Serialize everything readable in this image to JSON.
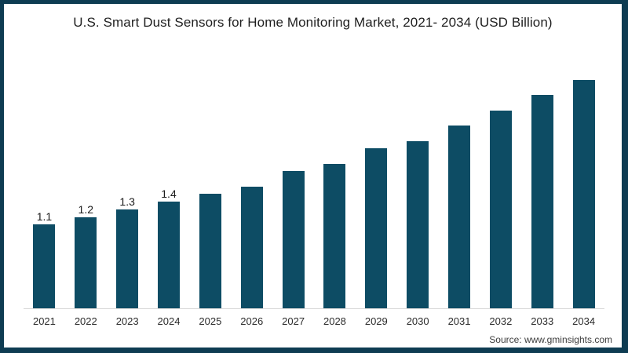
{
  "frame": {
    "border_color": "#0e3c52",
    "background_color": "#ffffff"
  },
  "title": "U.S. Smart Dust Sensors for Home Monitoring Market, 2021- 2034 (USD Billion)",
  "source": "Source: www.gminsights.com",
  "chart_data": {
    "type": "bar",
    "title": "U.S. Smart Dust Sensors for Home Monitoring Market, 2021- 2034 (USD Billion)",
    "categories": [
      "2021",
      "2022",
      "2023",
      "2024",
      "2025",
      "2026",
      "2027",
      "2028",
      "2029",
      "2030",
      "2031",
      "2032",
      "2033",
      "2034"
    ],
    "values": [
      1.1,
      1.2,
      1.3,
      1.4,
      1.5,
      1.6,
      1.8,
      1.9,
      2.1,
      2.2,
      2.4,
      2.6,
      2.8,
      3.0
    ],
    "data_labels": [
      "1.1",
      "1.2",
      "1.3",
      "1.4",
      "",
      "",
      "",
      "",
      "",
      "",
      "",
      "",
      "",
      ""
    ],
    "xlabel": "",
    "ylabel": "",
    "ylim": [
      0,
      3.2
    ],
    "grid": false,
    "legend": false,
    "y_axis_shown": false,
    "baseline_shown": true,
    "bar_color": "#0d4c64",
    "axis_line_color": "#d9d9d9",
    "source_text": "Source: www.gminsights.com"
  }
}
